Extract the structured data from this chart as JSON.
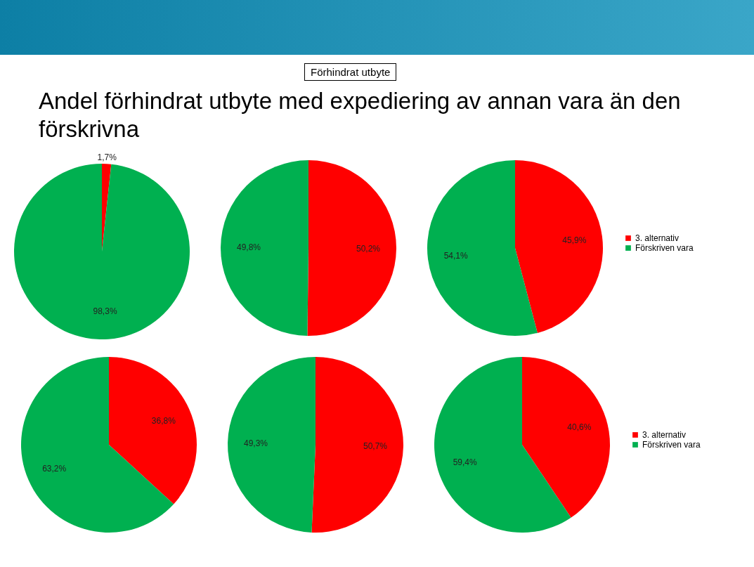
{
  "chart_data": [
    {
      "type": "pie",
      "title": "Andel förhindrat utbyte med expediering av annan vara än den förskrivna",
      "annotations": [
        "Förhindrat utbyte"
      ],
      "categories": [
        null,
        null
      ],
      "values": [
        1.7,
        98.3
      ],
      "colors": [
        "#ff0000",
        "#00b050"
      ],
      "value_labels": [
        "1,7%",
        "98,3%"
      ],
      "legend": false
    },
    {
      "type": "pie",
      "categories": [
        null,
        null
      ],
      "values": [
        50.2,
        49.8
      ],
      "colors": [
        "#ff0000",
        "#00b050"
      ],
      "value_labels": [
        "50,2%",
        "49,8%"
      ],
      "legend": false
    },
    {
      "type": "pie",
      "categories": [
        "3. alternativ",
        "Förskriven vara"
      ],
      "values": [
        45.9,
        54.1
      ],
      "colors": [
        "#ff0000",
        "#00b050"
      ],
      "value_labels": [
        "45,9%",
        "54,1%"
      ],
      "legend": "right"
    },
    {
      "type": "pie",
      "categories": [
        null,
        null
      ],
      "values": [
        36.8,
        63.2
      ],
      "colors": [
        "#ff0000",
        "#00b050"
      ],
      "value_labels": [
        "36,8%",
        "63,2%"
      ],
      "legend": false
    },
    {
      "type": "pie",
      "categories": [
        null,
        null
      ],
      "values": [
        50.7,
        49.3
      ],
      "colors": [
        "#ff0000",
        "#00b050"
      ],
      "value_labels": [
        "50,7%",
        "49,3%"
      ],
      "legend": false
    },
    {
      "type": "pie",
      "categories": [
        "3. alternativ",
        "Förskriven vara"
      ],
      "values": [
        40.6,
        59.4
      ],
      "colors": [
        "#ff0000",
        "#00b050"
      ],
      "value_labels": [
        "40,6%",
        "59,4%"
      ],
      "legend": "right"
    }
  ]
}
